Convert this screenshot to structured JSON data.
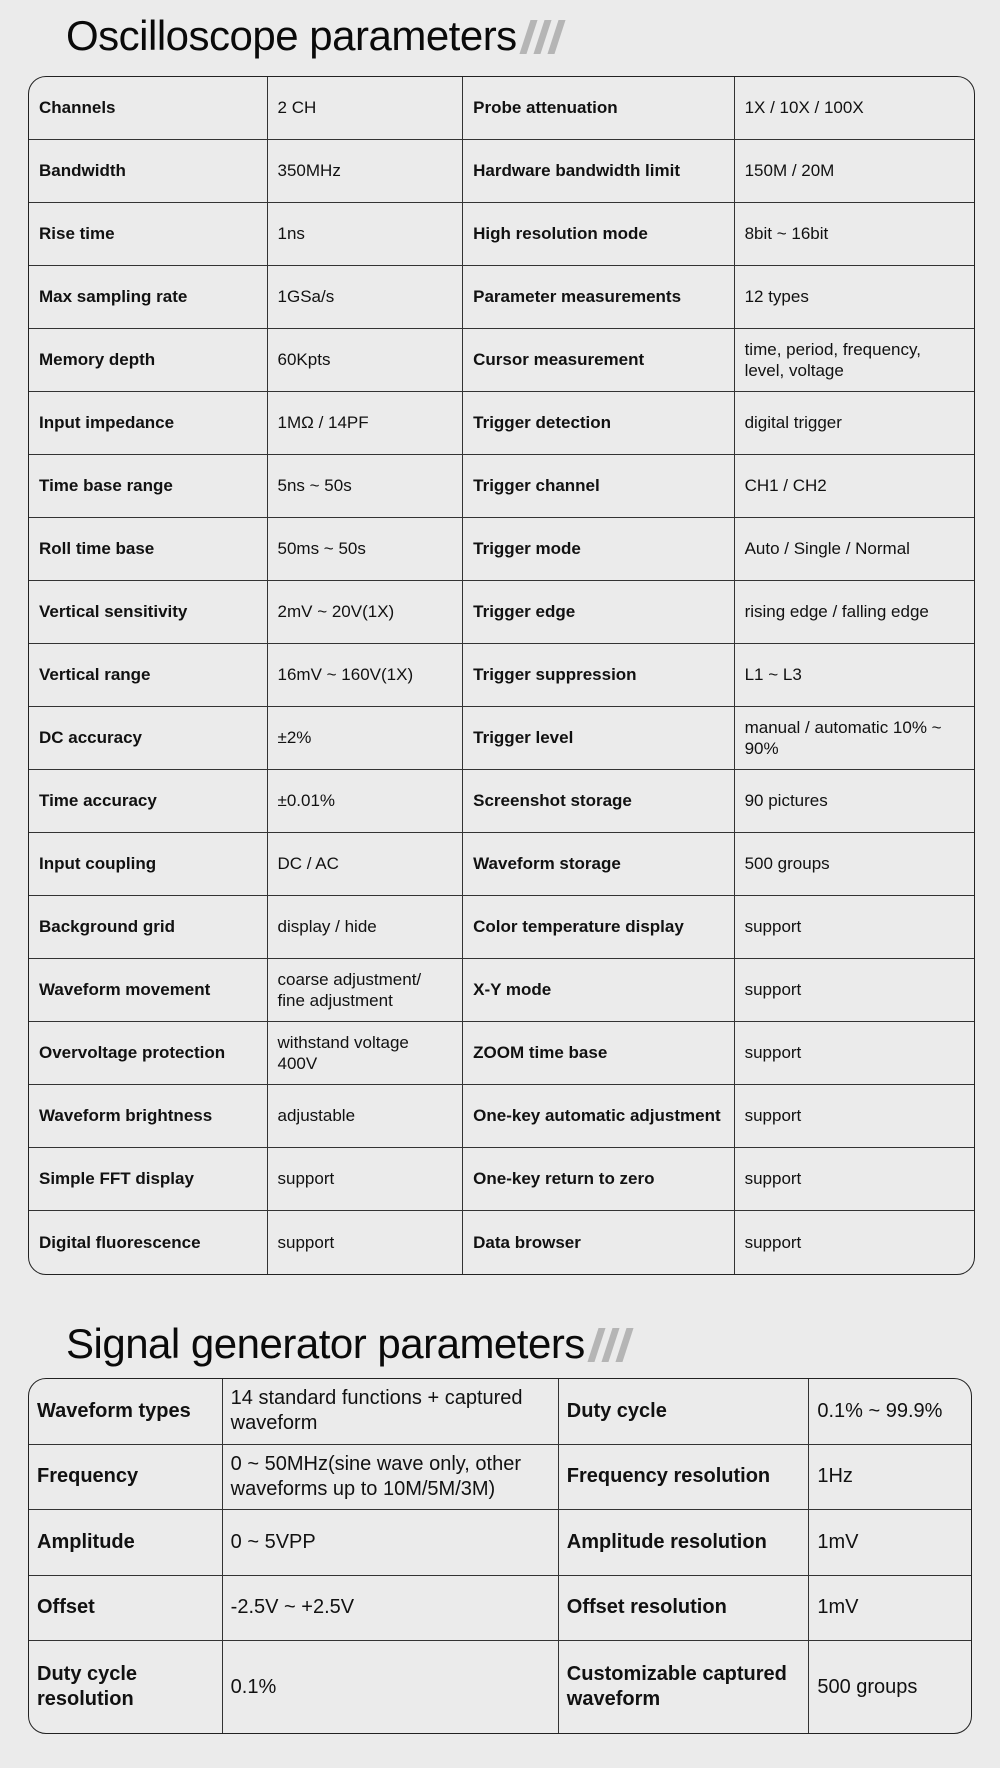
{
  "oscilloscope": {
    "title": "Oscilloscope parameters",
    "rows": [
      [
        "Channels",
        "2 CH",
        "Probe attenuation",
        "1X / 10X / 100X"
      ],
      [
        "Bandwidth",
        "350MHz",
        "Hardware bandwidth limit",
        "150M / 20M"
      ],
      [
        "Rise time",
        "1ns",
        "High resolution mode",
        "8bit ~ 16bit"
      ],
      [
        "Max sampling rate",
        "1GSa/s",
        "Parameter measurements",
        "12 types"
      ],
      [
        "Memory depth",
        "60Kpts",
        "Cursor measurement",
        "time, period, frequency, level, voltage"
      ],
      [
        "Input impedance",
        "1MΩ / 14PF",
        "Trigger detection",
        "digital trigger"
      ],
      [
        "Time base range",
        "5ns ~ 50s",
        "Trigger channel",
        "CH1 / CH2"
      ],
      [
        "Roll time base",
        "50ms ~ 50s",
        "Trigger mode",
        "Auto / Single / Normal"
      ],
      [
        "Vertical sensitivity",
        "2mV ~ 20V(1X)",
        "Trigger edge",
        "rising edge / falling edge"
      ],
      [
        "Vertical range",
        "16mV ~ 160V(1X)",
        "Trigger suppression",
        "L1 ~ L3"
      ],
      [
        "DC accuracy",
        "±2%",
        "Trigger level",
        "manual / automatic 10% ~ 90%"
      ],
      [
        "Time accuracy",
        "±0.01%",
        "Screenshot storage",
        "90 pictures"
      ],
      [
        "Input coupling",
        "DC / AC",
        "Waveform storage",
        "500 groups"
      ],
      [
        "Background grid",
        "display / hide",
        "Color temperature display",
        "support"
      ],
      [
        "Waveform movement",
        "coarse adjustment/ fine adjustment",
        "X-Y mode",
        "support"
      ],
      [
        "Overvoltage protection",
        "withstand voltage 400V",
        "ZOOM time base",
        "support"
      ],
      [
        "Waveform brightness",
        "adjustable",
        "One-key automatic adjustment",
        "support"
      ],
      [
        "Simple FFT display",
        "support",
        "One-key return to zero",
        "support"
      ],
      [
        "Digital fluorescence",
        "support",
        "Data browser",
        "support"
      ]
    ]
  },
  "signal_generator": {
    "title": "Signal generator parameters",
    "rows": [
      [
        "Waveform types",
        "14 standard functions + captured waveform",
        "Duty cycle",
        "0.1% ~ 99.9%"
      ],
      [
        "Frequency",
        "0 ~ 50MHz(sine wave only, other waveforms up to 10M/5M/3M)",
        "Frequency resolution",
        "1Hz"
      ],
      [
        "Amplitude",
        "0 ~ 5VPP",
        "Amplitude resolution",
        "1mV"
      ],
      [
        "Offset",
        "-2.5V ~ +2.5V",
        "Offset resolution",
        "1mV"
      ],
      [
        "Duty cycle resolution",
        "0.1%",
        "Customizable captured waveform",
        "500 groups"
      ]
    ]
  },
  "accent_color": "#b5b5b5"
}
